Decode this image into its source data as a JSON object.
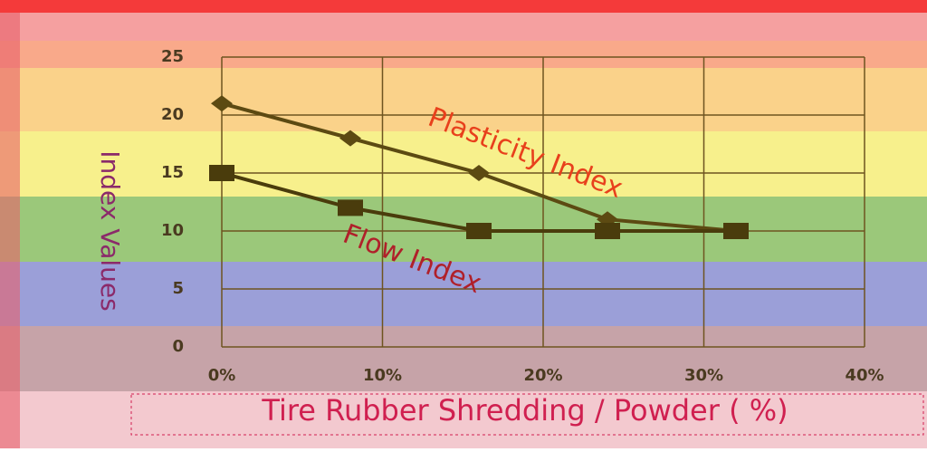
{
  "chart_data": {
    "type": "line",
    "x_label": "Tire Rubber Shredding / Powder ( %)",
    "y_label": "Index Values",
    "x": [
      0,
      8,
      16,
      24,
      32
    ],
    "series": [
      {
        "name": "Plasticity Index",
        "color": "#5c4a12",
        "marker": "diamond",
        "label_color": "#e8401c",
        "values": [
          21,
          18,
          15,
          11,
          10
        ]
      },
      {
        "name": "Flow Index",
        "color": "#4a3c0c",
        "marker": "square",
        "label_color": "#b0202a",
        "values": [
          15,
          12,
          10,
          10,
          10
        ]
      }
    ],
    "xlim": [
      0,
      40
    ],
    "xticks": [
      {
        "value": 0,
        "label": "0%"
      },
      {
        "value": 10,
        "label": "10%"
      },
      {
        "value": 20,
        "label": "20%"
      },
      {
        "value": 30,
        "label": "30%"
      },
      {
        "value": 40,
        "label": "40%"
      }
    ],
    "ylim": [
      0,
      25
    ],
    "yticks": [
      0,
      5,
      10,
      15,
      20,
      25
    ],
    "grid": true
  }
}
